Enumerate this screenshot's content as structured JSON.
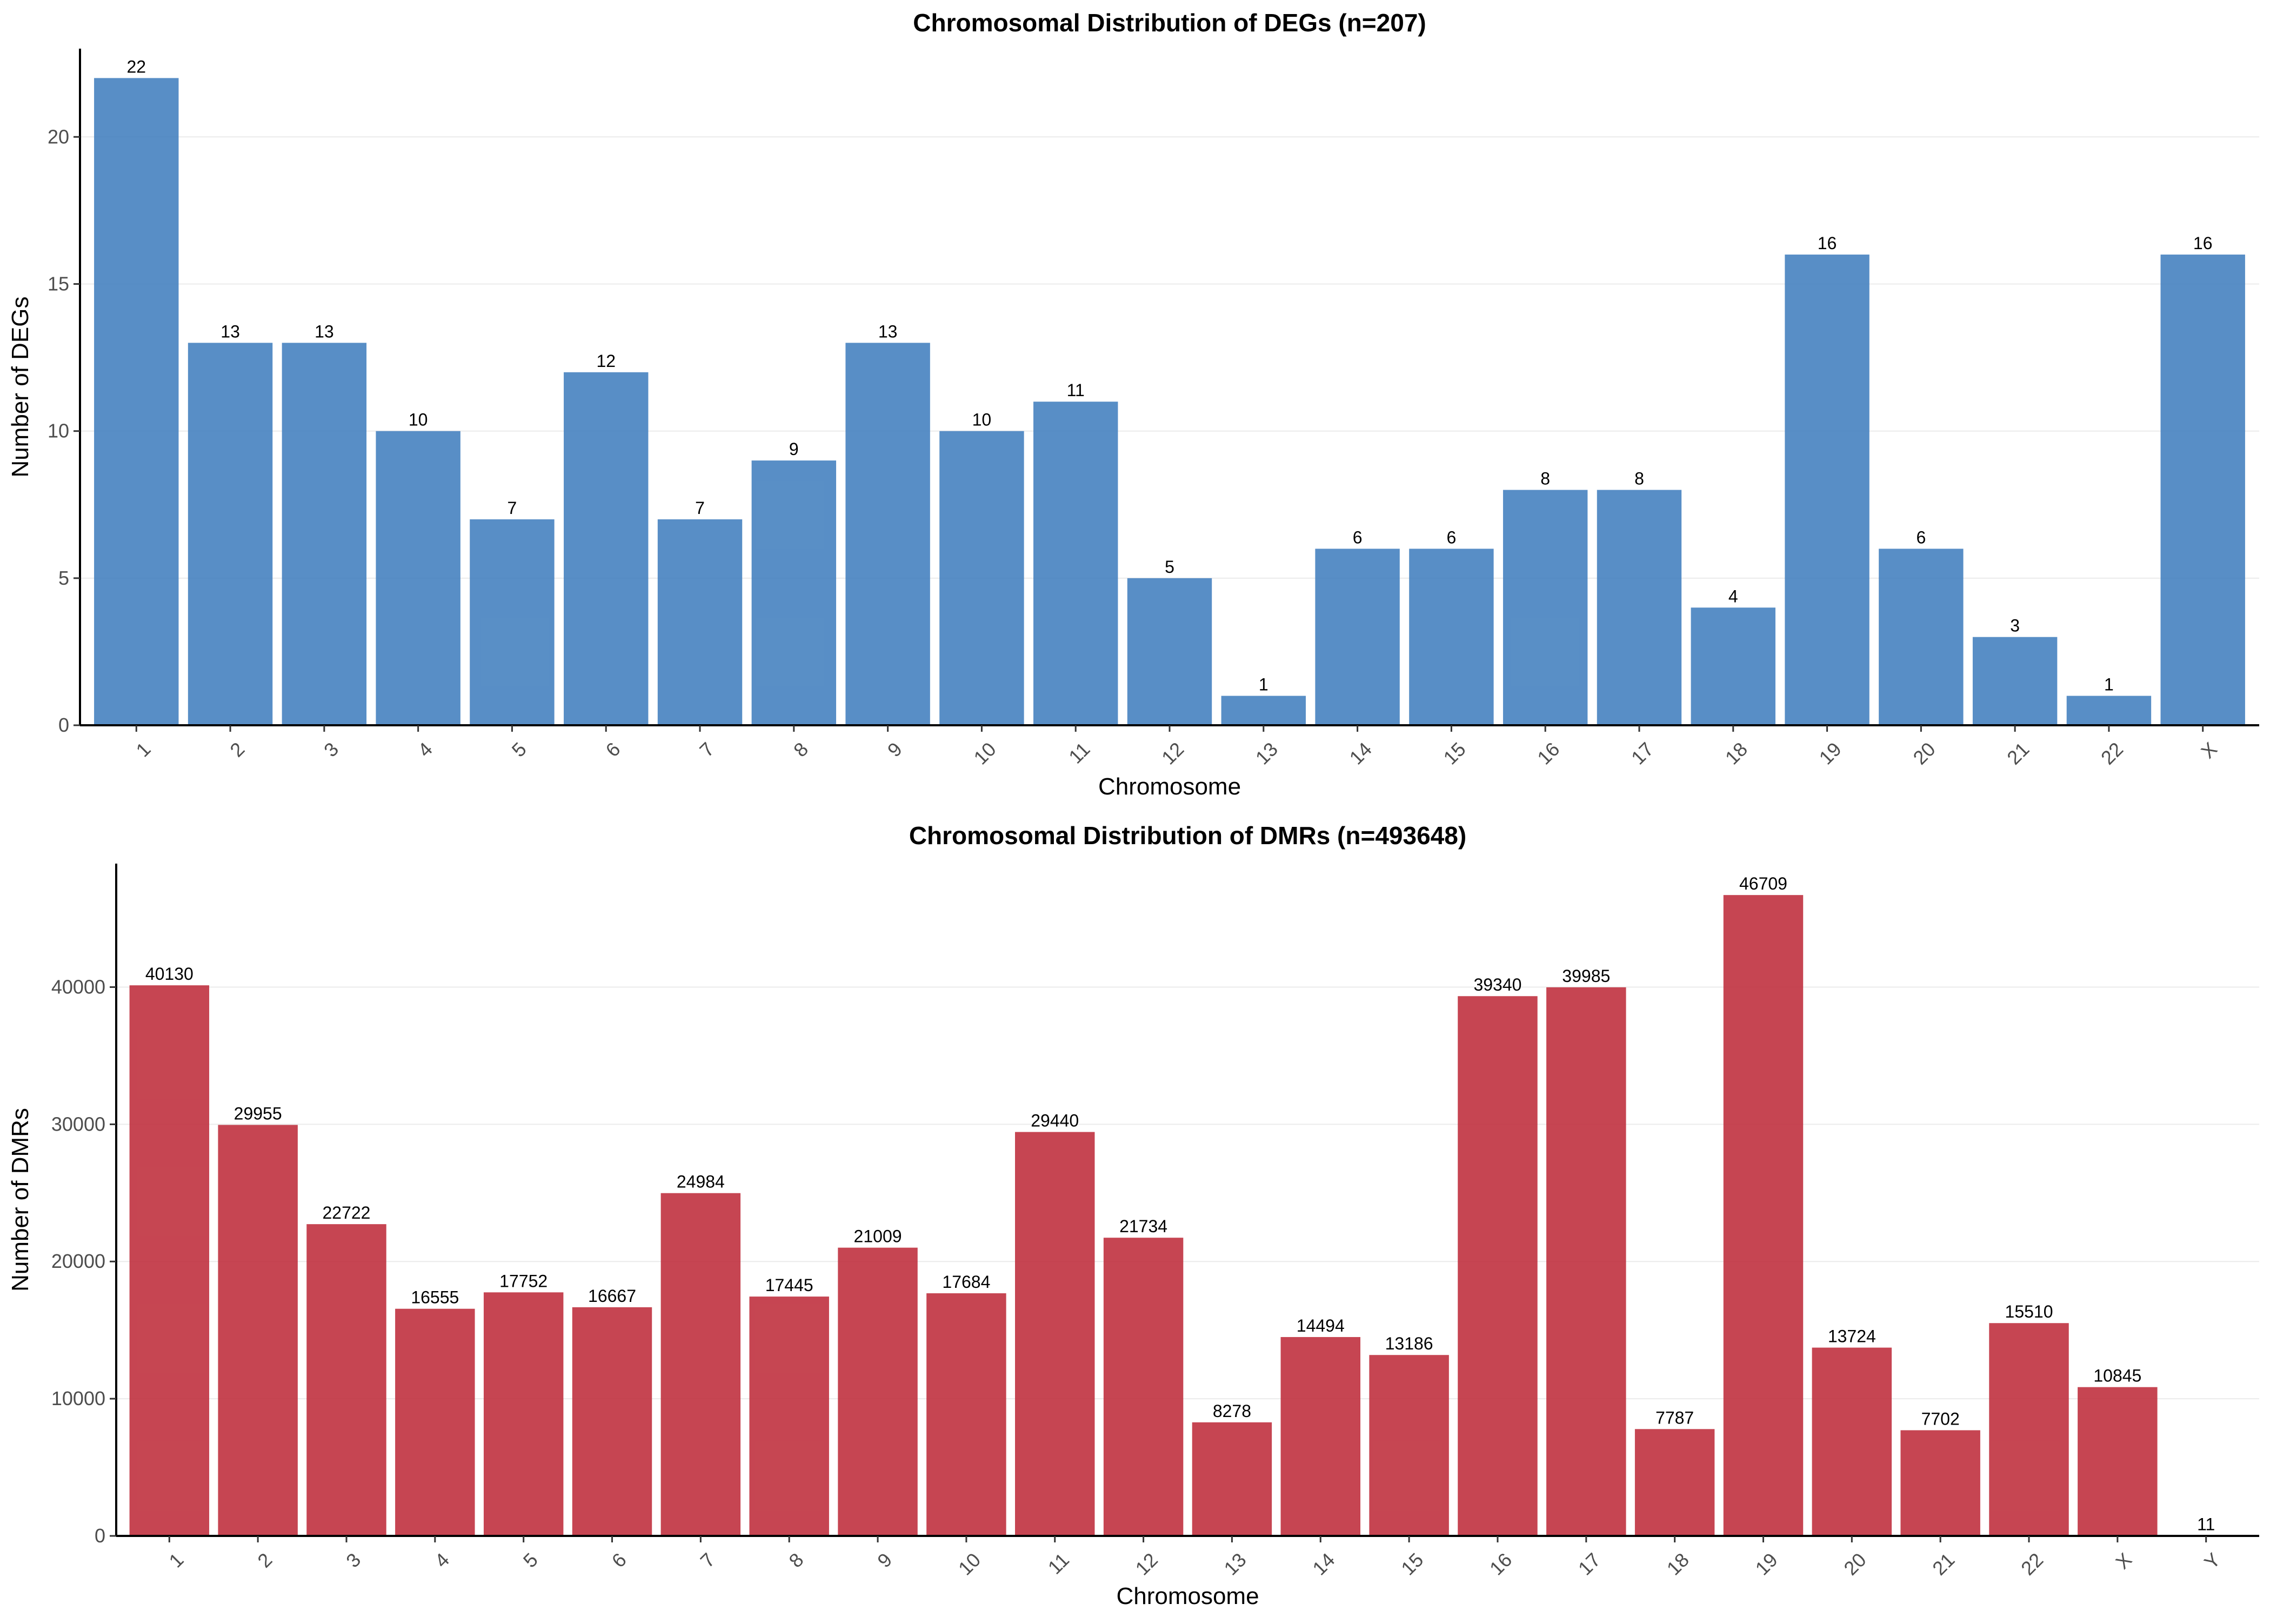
{
  "chart_data": [
    {
      "type": "bar",
      "title": "Chromosomal Distribution of DEGs (n=207)",
      "xlabel": "Chromosome",
      "ylabel": "Number of DEGs",
      "categories": [
        "1",
        "2",
        "3",
        "4",
        "5",
        "6",
        "7",
        "8",
        "9",
        "10",
        "11",
        "12",
        "13",
        "14",
        "15",
        "16",
        "17",
        "18",
        "19",
        "20",
        "21",
        "22",
        "X"
      ],
      "values": [
        22,
        13,
        13,
        10,
        7,
        12,
        7,
        9,
        13,
        10,
        11,
        5,
        1,
        6,
        6,
        8,
        8,
        4,
        16,
        6,
        3,
        1,
        16
      ],
      "ylim": [
        0,
        23
      ],
      "yticks": [
        0,
        5,
        10,
        15,
        20
      ],
      "bar_color": "#4682C0",
      "grid": "horizontal",
      "legend": "none"
    },
    {
      "type": "bar",
      "title": "Chromosomal Distribution of DMRs (n=493648)",
      "xlabel": "Chromosome",
      "ylabel": "Number of DMRs",
      "categories": [
        "1",
        "2",
        "3",
        "4",
        "5",
        "6",
        "7",
        "8",
        "9",
        "10",
        "11",
        "12",
        "13",
        "14",
        "15",
        "16",
        "17",
        "18",
        "19",
        "20",
        "21",
        "22",
        "X",
        "Y"
      ],
      "values": [
        40130,
        29955,
        22722,
        16555,
        17752,
        16667,
        24984,
        17445,
        21009,
        17684,
        29440,
        21734,
        8278,
        14494,
        13186,
        39340,
        39985,
        7787,
        46709,
        13724,
        7702,
        15510,
        10845,
        11
      ],
      "ylim": [
        0,
        49000
      ],
      "yticks": [
        0,
        10000,
        20000,
        30000,
        40000
      ],
      "bar_color": "#C0313F",
      "grid": "horizontal",
      "legend": "none"
    }
  ]
}
